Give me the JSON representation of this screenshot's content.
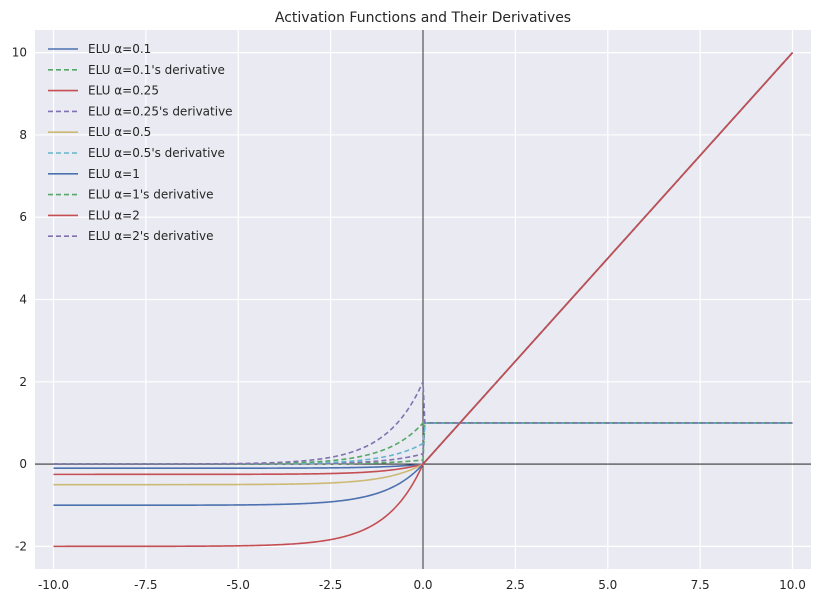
{
  "chart_data": {
    "type": "line",
    "title": "Activation Functions and Their Derivatives",
    "xlabel": "",
    "ylabel": "",
    "xlim": [
      -10.5,
      10.5
    ],
    "ylim": [
      -2.55,
      10.55
    ],
    "x_ticks": [
      -10.0,
      -7.5,
      -5.0,
      -2.5,
      0.0,
      2.5,
      5.0,
      7.5,
      10.0
    ],
    "x_tick_labels": [
      "-10.0",
      "-7.5",
      "-5.0",
      "-2.5",
      "0.0",
      "2.5",
      "5.0",
      "7.5",
      "10.0"
    ],
    "y_ticks": [
      -2,
      0,
      2,
      4,
      6,
      8,
      10
    ],
    "y_tick_labels": [
      "-2",
      "0",
      "2",
      "4",
      "6",
      "8",
      "10"
    ],
    "grid": true,
    "legend_position": "top-left",
    "x_range": [
      -10,
      10
    ],
    "series": [
      {
        "name": "ELU α=0.1",
        "kind": "elu",
        "alpha": 0.1,
        "color": "#4c72b0",
        "dashed": false
      },
      {
        "name": "ELU α=0.1's derivative",
        "kind": "derivative",
        "alpha": 0.1,
        "color": "#55a868",
        "dashed": true
      },
      {
        "name": "ELU α=0.25",
        "kind": "elu",
        "alpha": 0.25,
        "color": "#c44e52",
        "dashed": false
      },
      {
        "name": "ELU α=0.25's derivative",
        "kind": "derivative",
        "alpha": 0.25,
        "color": "#8172b2",
        "dashed": true
      },
      {
        "name": "ELU α=0.5",
        "kind": "elu",
        "alpha": 0.5,
        "color": "#ccb974",
        "dashed": false
      },
      {
        "name": "ELU α=0.5's derivative",
        "kind": "derivative",
        "alpha": 0.5,
        "color": "#64b5cd",
        "dashed": true
      },
      {
        "name": "ELU α=1",
        "kind": "elu",
        "alpha": 1,
        "color": "#4c72b0",
        "dashed": false
      },
      {
        "name": "ELU α=1's derivative",
        "kind": "derivative",
        "alpha": 1,
        "color": "#55a868",
        "dashed": true
      },
      {
        "name": "ELU α=2",
        "kind": "elu",
        "alpha": 2,
        "color": "#c44e52",
        "dashed": false
      },
      {
        "name": "ELU α=2's derivative",
        "kind": "derivative",
        "alpha": 2,
        "color": "#8172b2",
        "dashed": true
      }
    ]
  }
}
